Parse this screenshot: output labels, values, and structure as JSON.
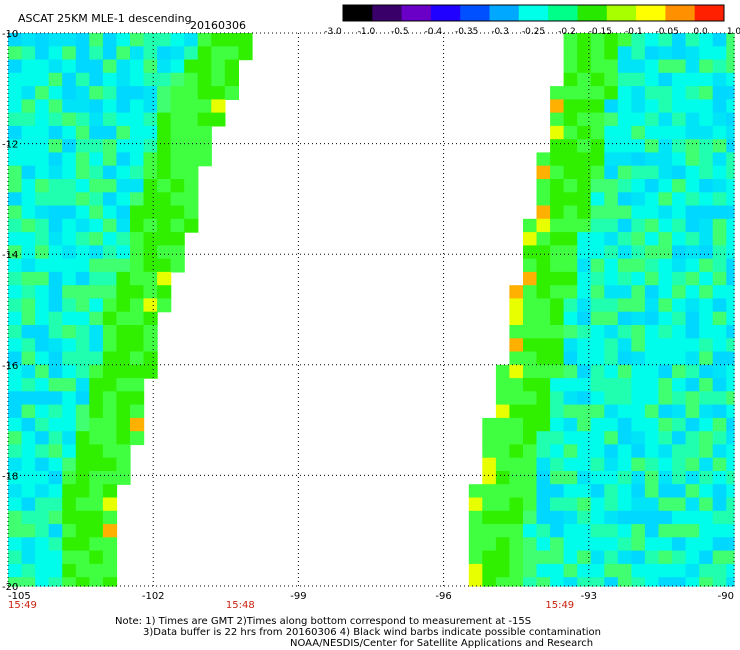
{
  "header": {
    "title": "ASCAT 25KM MLE-1 descending",
    "date": "20160306"
  },
  "colorbar": {
    "tick_labels": [
      "-3.0",
      "-1.0",
      "-0.5",
      "-0.4",
      "-0.35",
      "-0.3",
      "-0.25",
      "-0.2",
      "-0.15",
      "-0.1",
      "-0.05",
      "0.0",
      "1.0"
    ],
    "colors": [
      "#000000",
      "#3a006a",
      "#6a00c8",
      "#2000ff",
      "#0050ff",
      "#00a8ff",
      "#00ffe8",
      "#00ff88",
      "#28e800",
      "#a8ff00",
      "#ffff00",
      "#ff9000",
      "#ff2000"
    ]
  },
  "chart_data": {
    "type": "heatmap",
    "title": "ASCAT 25KM MLE-1 descending",
    "subtitle": "20160306",
    "xlim": [
      -105,
      -90
    ],
    "ylim": [
      -20,
      -10
    ],
    "x_ticks": [
      "-105",
      "-102",
      "-99",
      "-96",
      "-93",
      "-90"
    ],
    "y_ticks": [
      "-10",
      "-12",
      "-14",
      "-16",
      "-18",
      "-20"
    ],
    "grid": true,
    "colorscale_range": [
      -3.0,
      1.0
    ],
    "swaths": [
      {
        "time": "15:49",
        "west_lon": -105,
        "east_edge": [
          [
            -10,
            -99.8
          ],
          [
            -11,
            -100.3
          ],
          [
            -12,
            -100.8
          ],
          [
            -13,
            -101.1
          ],
          [
            -14,
            -101.3
          ],
          [
            -15,
            -101.8
          ],
          [
            -16,
            -102.0
          ],
          [
            -17,
            -102.2
          ],
          [
            -18,
            -102.6
          ],
          [
            -19,
            -102.8
          ],
          [
            -20,
            -102.8
          ]
        ]
      },
      {
        "time": "15:48",
        "label_lon": -100.2
      },
      {
        "time": "15:49",
        "east_lon": -90,
        "west_edge": [
          [
            -10,
            -93.4
          ],
          [
            -11,
            -93.7
          ],
          [
            -12,
            -93.9
          ],
          [
            -13,
            -94.1
          ],
          [
            -14,
            -94.4
          ],
          [
            -15,
            -94.6
          ],
          [
            -16,
            -94.8
          ],
          [
            -17,
            -95.1
          ],
          [
            -18,
            -95.3
          ],
          [
            -19,
            -95.5
          ],
          [
            -20,
            -95.6
          ]
        ]
      }
    ]
  },
  "bottom_times": [
    {
      "text": "15:49",
      "lon": -105
    },
    {
      "text": "15:48",
      "lon": -100.2
    },
    {
      "text": "15:49",
      "lon": -93.6
    }
  ],
  "notes": {
    "line1": "Note: 1) Times are GMT 2)Times along bottom correspond to measurement at -15S",
    "line2": "3)Data buffer is 22 hrs from 20160306 4) Black wind barbs indicate possible contamination",
    "line3": "NOAA/NESDIS/Center for Satellite Applications and Research"
  }
}
